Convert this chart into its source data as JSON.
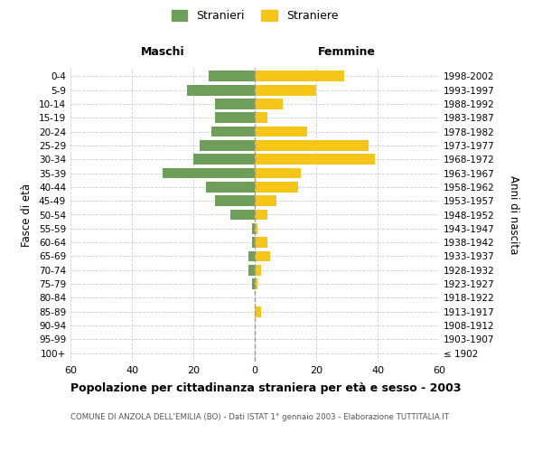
{
  "age_groups": [
    "100+",
    "95-99",
    "90-94",
    "85-89",
    "80-84",
    "75-79",
    "70-74",
    "65-69",
    "60-64",
    "55-59",
    "50-54",
    "45-49",
    "40-44",
    "35-39",
    "30-34",
    "25-29",
    "20-24",
    "15-19",
    "10-14",
    "5-9",
    "0-4"
  ],
  "birth_years": [
    "≤ 1902",
    "1903-1907",
    "1908-1912",
    "1913-1917",
    "1918-1922",
    "1923-1927",
    "1928-1932",
    "1933-1937",
    "1938-1942",
    "1943-1947",
    "1948-1952",
    "1953-1957",
    "1958-1962",
    "1963-1967",
    "1968-1972",
    "1973-1977",
    "1978-1982",
    "1983-1987",
    "1988-1992",
    "1993-1997",
    "1998-2002"
  ],
  "males": [
    0,
    0,
    0,
    0,
    0,
    1,
    2,
    2,
    1,
    1,
    8,
    13,
    16,
    30,
    20,
    18,
    14,
    13,
    13,
    22,
    15
  ],
  "females": [
    0,
    0,
    0,
    2,
    0,
    1,
    2,
    5,
    4,
    1,
    4,
    7,
    14,
    15,
    39,
    37,
    17,
    4,
    9,
    20,
    29
  ],
  "male_color": "#6d9e5a",
  "female_color": "#f5c518",
  "background_color": "#ffffff",
  "grid_color": "#cccccc",
  "title": "Popolazione per cittadinanza straniera per età e sesso - 2003",
  "subtitle": "COMUNE DI ANZOLA DELL'EMILIA (BO) - Dati ISTAT 1° gennaio 2003 - Elaborazione TUTTITALIA.IT",
  "ylabel_left": "Fasce di età",
  "ylabel_right": "Anni di nascita",
  "header_left": "Maschi",
  "header_right": "Femmine",
  "legend_male": "Stranieri",
  "legend_female": "Straniere",
  "xlim": 60
}
